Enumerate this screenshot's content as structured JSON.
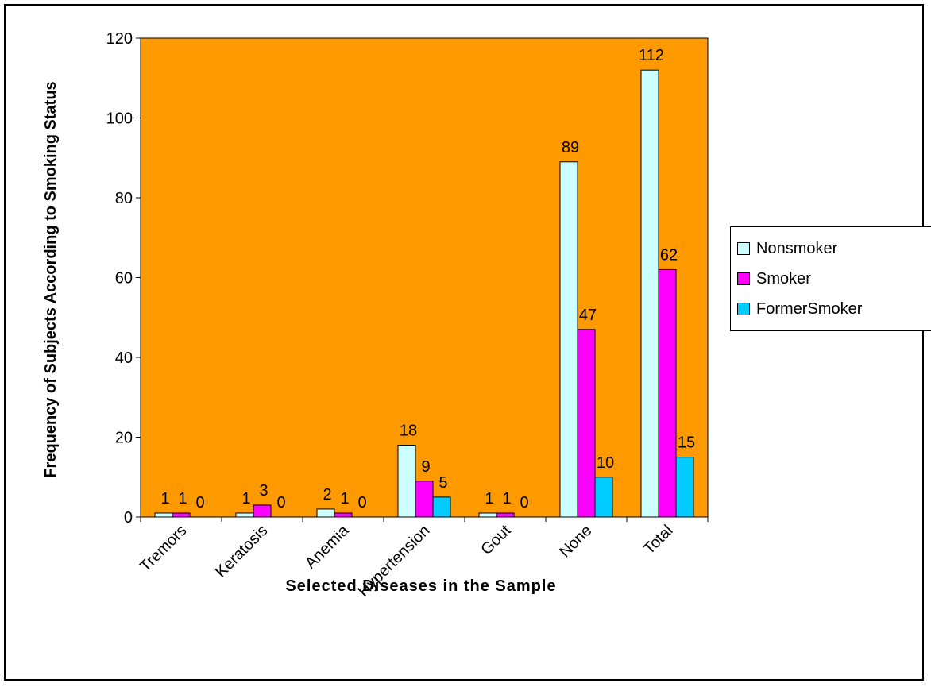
{
  "chart_data": {
    "type": "bar",
    "categories": [
      "Tremors",
      "Keratosis",
      "Anemia",
      "Hypertension",
      "Gout",
      "None",
      "Total"
    ],
    "series": [
      {
        "name": "Nonsmoker",
        "values": [
          1,
          1,
          2,
          18,
          1,
          89,
          112
        ],
        "color": "#ccffff"
      },
      {
        "name": "Smoker",
        "values": [
          1,
          3,
          1,
          9,
          1,
          47,
          62
        ],
        "color": "#ff00ff"
      },
      {
        "name": "FormerSmoker",
        "values": [
          0,
          0,
          0,
          5,
          0,
          10,
          15
        ],
        "color": "#00ccff"
      }
    ],
    "xlabel": "Selected Diseases in the Sample",
    "ylabel": "Frequency of Subjects According to Smoking Status",
    "ylim": [
      0,
      120
    ],
    "yticks": [
      0,
      20,
      40,
      60,
      80,
      100,
      120
    ],
    "plot_background": "#ff9900",
    "grid": false,
    "legend_position": "right",
    "data_labels": true
  }
}
